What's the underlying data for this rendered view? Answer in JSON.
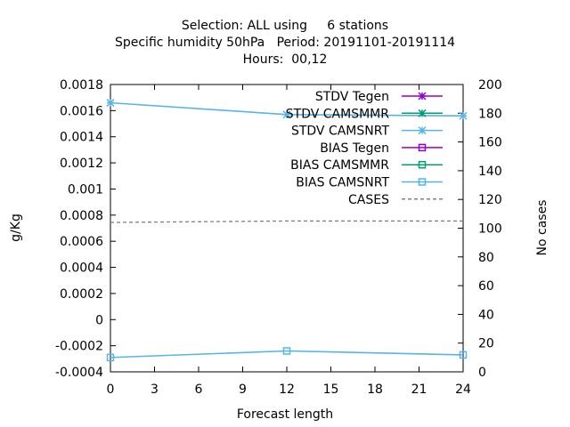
{
  "chart_data": {
    "type": "line",
    "title": [
      "Selection: ALL using     6 stations",
      "Specific humidity 50hPa   Period: 20191101-20191114",
      "Hours:  00,12"
    ],
    "xlabel": "Forecast length",
    "ylabel": "g/Kg",
    "y2label": "No cases",
    "xlim": [
      0,
      24
    ],
    "ylim": [
      -0.0004,
      0.0018
    ],
    "y2lim": [
      0,
      200
    ],
    "x_ticks": [
      0,
      3,
      6,
      9,
      12,
      15,
      18,
      21,
      24
    ],
    "y_ticks": [
      -0.0004,
      -0.0002,
      0,
      0.0002,
      0.0004,
      0.0006,
      0.0008,
      0.001,
      0.0012,
      0.0014,
      0.0016,
      0.0018
    ],
    "y_tick_labels": [
      "-0.0004",
      "-0.0002",
      "0",
      "0.0002",
      "0.0004",
      "0.0006",
      "0.0008",
      "0.001",
      "0.0012",
      "0.0014",
      "0.0016",
      "0.0018"
    ],
    "y2_ticks": [
      0,
      20,
      40,
      60,
      80,
      100,
      120,
      140,
      160,
      180,
      200
    ],
    "legend_position": "top-right",
    "grid": false,
    "series": [
      {
        "name": "STDV Tegen",
        "axis": "y",
        "marker": "star",
        "color": "#9400d3",
        "x": [],
        "values": []
      },
      {
        "name": "STDV CAMSMMR",
        "axis": "y",
        "marker": "star",
        "color": "#009e73",
        "x": [],
        "values": []
      },
      {
        "name": "STDV CAMSNRT",
        "axis": "y",
        "marker": "star",
        "color": "#56b4e9",
        "x": [
          0,
          12,
          24
        ],
        "values": [
          0.00166,
          0.00157,
          0.00156
        ]
      },
      {
        "name": "BIAS Tegen",
        "axis": "y",
        "marker": "square",
        "color": "#9400d3",
        "x": [],
        "values": []
      },
      {
        "name": "BIAS CAMSMMR",
        "axis": "y",
        "marker": "square",
        "color": "#009e73",
        "x": [],
        "values": []
      },
      {
        "name": "BIAS CAMSNRT",
        "axis": "y",
        "marker": "square",
        "color": "#56b4e9",
        "x": [
          0,
          12,
          24
        ],
        "values": [
          -0.00029,
          -0.00024,
          -0.00027
        ]
      },
      {
        "name": "CASES",
        "axis": "y2",
        "marker": "none",
        "dashed": true,
        "color": "#808080",
        "x": [
          0,
          12,
          24
        ],
        "values": [
          104,
          105,
          105
        ]
      }
    ]
  }
}
